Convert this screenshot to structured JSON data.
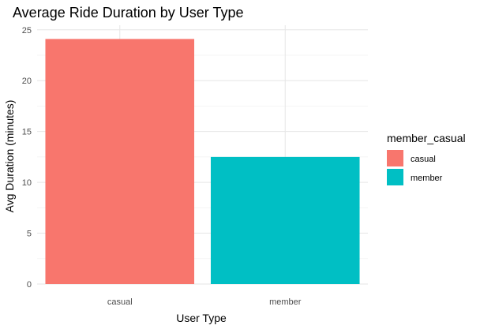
{
  "chart_data": {
    "type": "bar",
    "title": "Average Ride Duration by User Type",
    "xlabel": "User Type",
    "ylabel": "Avg Duration (minutes)",
    "categories": [
      "casual",
      "member"
    ],
    "values": [
      24.1,
      12.5
    ],
    "ylim": [
      0,
      25
    ],
    "yticks": [
      0,
      5,
      10,
      15,
      20,
      25
    ],
    "grid": true,
    "legend": {
      "title": "member_casual",
      "placement": "right",
      "entries": [
        {
          "label": "casual",
          "color": "#F8766D"
        },
        {
          "label": "member",
          "color": "#00BFC4"
        }
      ]
    }
  }
}
